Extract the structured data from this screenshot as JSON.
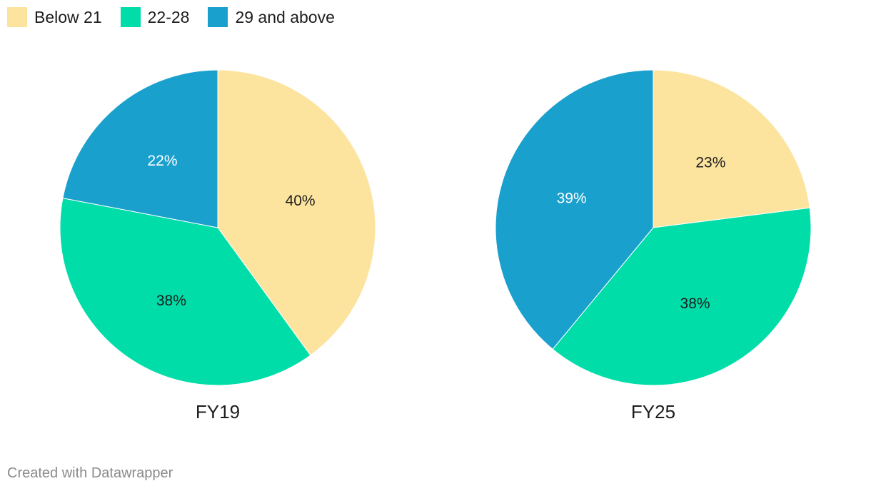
{
  "legend": [
    {
      "label": "Below 21",
      "color": "#FDE49E"
    },
    {
      "label": "22-28",
      "color": "#00DDA8"
    },
    {
      "label": "29 and above",
      "color": "#1AA0CD"
    }
  ],
  "chart_data": [
    {
      "type": "pie",
      "title": "FY19",
      "categories": [
        "Below 21",
        "22-28",
        "29 and above"
      ],
      "values": [
        40,
        38,
        22
      ],
      "labels": [
        "40%",
        "38%",
        "22%"
      ],
      "colors": [
        "#FDE49E",
        "#00DDA8",
        "#1AA0CD"
      ],
      "label_colors": [
        "#1d1d1d",
        "#1d1d1d",
        "#ffffff"
      ]
    },
    {
      "type": "pie",
      "title": "FY25",
      "categories": [
        "Below 21",
        "22-28",
        "29 and above"
      ],
      "values": [
        23,
        38,
        39
      ],
      "labels": [
        "23%",
        "38%",
        "39%"
      ],
      "colors": [
        "#FDE49E",
        "#00DDA8",
        "#1AA0CD"
      ],
      "label_colors": [
        "#1d1d1d",
        "#1d1d1d",
        "#ffffff"
      ]
    }
  ],
  "footer": {
    "credit": "Created with Datawrapper"
  }
}
